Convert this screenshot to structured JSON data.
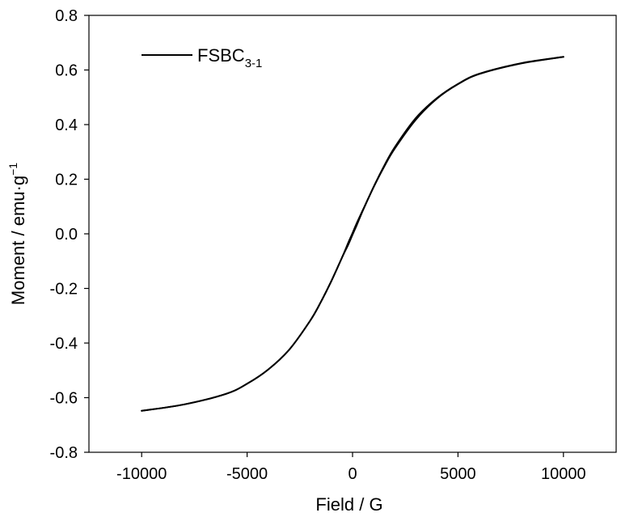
{
  "chart_data": {
    "type": "line",
    "title": "",
    "xlabel": "Field / G",
    "ylabel_main": "Moment / emu·g",
    "ylabel_sup": "−1",
    "xlim": [
      -12500,
      12500
    ],
    "ylim": [
      -0.8,
      0.8
    ],
    "xticks": [
      -10000,
      -5000,
      0,
      5000,
      10000
    ],
    "xtick_labels": [
      "-10000",
      "-5000",
      "0",
      "5000",
      "10000"
    ],
    "yticks": [
      -0.8,
      -0.6,
      -0.4,
      -0.2,
      0.0,
      0.2,
      0.4,
      0.6,
      0.8
    ],
    "ytick_labels": [
      "-0.8",
      "-0.6",
      "-0.4",
      "-0.2",
      "0.0",
      "0.2",
      "0.4",
      "0.6",
      "0.8"
    ],
    "grid": false,
    "legend_position": "top-left",
    "legend": {
      "main": "FSBC",
      "sub": "3-1"
    },
    "line_color": "#000000",
    "series": [
      {
        "name": "FSBC3-1",
        "branch": "descending",
        "x": [
          10000,
          8000,
          6000,
          5000,
          4000,
          3000,
          2000,
          1500,
          1000,
          500,
          200,
          0,
          -200,
          -500,
          -1000,
          -1500,
          -2000,
          -3000,
          -4000,
          -5000,
          -6000,
          -8000,
          -10000
        ],
        "y": [
          0.648,
          0.624,
          0.585,
          0.548,
          0.495,
          0.418,
          0.312,
          0.246,
          0.171,
          0.089,
          0.039,
          0.003,
          -0.032,
          -0.087,
          -0.172,
          -0.249,
          -0.317,
          -0.424,
          -0.497,
          -0.549,
          -0.586,
          -0.625,
          -0.648
        ]
      },
      {
        "name": "FSBC3-1",
        "branch": "ascending",
        "x": [
          -10000,
          -8000,
          -6000,
          -5000,
          -4000,
          -3000,
          -2000,
          -1500,
          -1000,
          -500,
          -200,
          0,
          200,
          500,
          1000,
          1500,
          2000,
          3000,
          4000,
          5000,
          6000,
          8000,
          10000
        ],
        "y": [
          -0.648,
          -0.625,
          -0.586,
          -0.549,
          -0.497,
          -0.424,
          -0.317,
          -0.249,
          -0.172,
          -0.087,
          -0.039,
          -0.003,
          0.032,
          0.087,
          0.172,
          0.249,
          0.317,
          0.424,
          0.497,
          0.549,
          0.586,
          0.625,
          0.648
        ]
      }
    ]
  }
}
